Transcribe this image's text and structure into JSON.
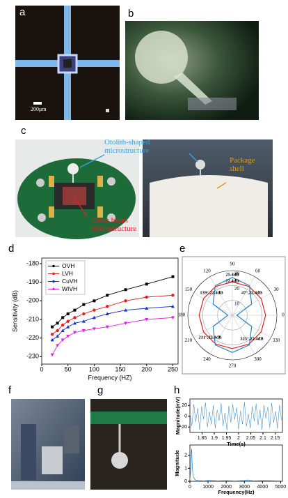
{
  "panel_labels": [
    "a",
    "b",
    "c",
    "d",
    "e",
    "f",
    "g",
    "h"
  ],
  "photo_a": {
    "scale_bar": "200μm"
  },
  "photo_c": {
    "annotations": [
      "Otolith-shaped microstructure",
      "Package shell",
      "Cross beam microstructure"
    ]
  },
  "chart_data": [
    {
      "type": "line",
      "xlabel": "Frequency (HZ)",
      "ylabel": "Sensitivity (dB)",
      "x": [
        20,
        30,
        40,
        50,
        63,
        80,
        100,
        125,
        160,
        200,
        250
      ],
      "xlim": [
        0,
        260
      ],
      "xticks": [
        0,
        50,
        100,
        150,
        200,
        250
      ],
      "ylim": [
        -234,
        -177
      ],
      "yticks": [
        -180,
        -190,
        -200,
        -210,
        -220,
        -230
      ],
      "legend": "upper-left",
      "series": [
        {
          "name": "OVH",
          "color": "#000000",
          "marker": "square",
          "values": [
            -214,
            -212,
            -209,
            -207,
            -205,
            -202,
            -200,
            -197,
            -194,
            -191,
            -187
          ]
        },
        {
          "name": "LVH",
          "color": "#e02020",
          "marker": "circle",
          "values": [
            -218,
            -216,
            -213,
            -211,
            -209,
            -207,
            -205,
            -203,
            -200,
            -198,
            -197
          ]
        },
        {
          "name": "CuVH",
          "color": "#1030d0",
          "marker": "triangle",
          "values": [
            -221,
            -219,
            -216,
            -214,
            -212,
            -211,
            -209,
            -207,
            -205,
            -204,
            -203
          ]
        },
        {
          "name": "WIVH",
          "color": "#e020e0",
          "marker": "triangle-down",
          "values": [
            -229,
            -224,
            -221,
            -219,
            -217,
            -216,
            -215,
            -214,
            -212,
            -210,
            -209
          ]
        }
      ]
    },
    {
      "type": "polar",
      "angles": [
        0,
        30,
        60,
        90,
        120,
        150,
        180,
        210,
        240,
        270,
        300,
        330
      ],
      "rlim": [
        0,
        30
      ],
      "rticks": [
        10,
        20,
        30
      ],
      "series": [
        {
          "color": "#e02020",
          "values": [
            22.4,
            22.4,
            22.4,
            22.4,
            22.4,
            22.4,
            22.4,
            22.4,
            22.4,
            22.4,
            22.4,
            22.4
          ]
        },
        {
          "color": "#2a7fc0",
          "values": [
            3,
            15,
            23,
            25.4,
            23,
            15,
            3,
            15,
            23,
            25,
            23,
            15
          ]
        }
      ],
      "annotations": [
        "25.4dB",
        "22.4dB",
        "139°,22.4dB",
        "47°,22.4dB",
        "231°,22.4dB",
        "325°,22.4dB"
      ]
    },
    {
      "type": "line",
      "xlabel": "Time(s)",
      "ylabel": "Magnitude(mV)",
      "color": "#2a7fc0",
      "x": [
        1.8,
        1.808,
        1.816,
        1.824,
        1.832,
        1.84,
        1.848,
        1.856,
        1.864,
        1.872,
        1.88,
        1.888,
        1.896,
        1.904,
        1.912,
        1.92,
        1.928,
        1.936,
        1.944,
        1.952,
        1.96,
        1.968,
        1.976,
        1.984,
        1.992,
        2.0,
        2.008,
        2.016,
        2.024,
        2.032,
        2.04,
        2.048,
        2.056,
        2.064,
        2.072,
        2.08,
        2.088,
        2.096,
        2.104,
        2.112,
        2.12,
        2.128,
        2.136,
        2.144,
        2.152,
        2.16,
        2.168,
        2.176
      ],
      "values": [
        5,
        -18,
        22,
        -10,
        15,
        -25,
        18,
        -5,
        25,
        -20,
        8,
        -15,
        20,
        -22,
        12,
        -8,
        24,
        -18,
        6,
        -26,
        19,
        -12,
        22,
        -6,
        16,
        -24,
        10,
        -15,
        26,
        -19,
        4,
        -22,
        18,
        -9,
        23,
        -16,
        12,
        -25,
        20,
        -4,
        17,
        -21,
        24,
        -11,
        9,
        -23,
        21,
        -7
      ],
      "xlim": [
        1.8,
        2.18
      ],
      "xticks": [
        1.85,
        1.9,
        1.95,
        2,
        2.05,
        2.1,
        2.15
      ],
      "ylim": [
        -30,
        32
      ],
      "yticks": [
        -20,
        0,
        20
      ]
    },
    {
      "type": "line",
      "xlabel": "Frequency(Hz)",
      "ylabel": "Magnitude",
      "color": "#2a7fc0",
      "x": [
        0,
        40,
        80,
        100,
        120,
        160,
        200,
        300,
        500,
        800,
        1000,
        1500,
        2000,
        2500,
        3000,
        3200,
        3500,
        4000,
        4500,
        5000
      ],
      "values": [
        0.1,
        0.8,
        2.3,
        2.5,
        1.4,
        0.6,
        0.3,
        0.1,
        0.05,
        0.03,
        0.08,
        0.03,
        0.05,
        0.02,
        0.06,
        0.1,
        0.03,
        0.05,
        0.04,
        0.02
      ],
      "xlim": [
        0,
        5100
      ],
      "xticks": [
        0,
        1000,
        2000,
        3000,
        4000,
        5000
      ],
      "ylim": [
        0,
        2.8
      ],
      "yticks": [
        0,
        1,
        2
      ]
    }
  ]
}
